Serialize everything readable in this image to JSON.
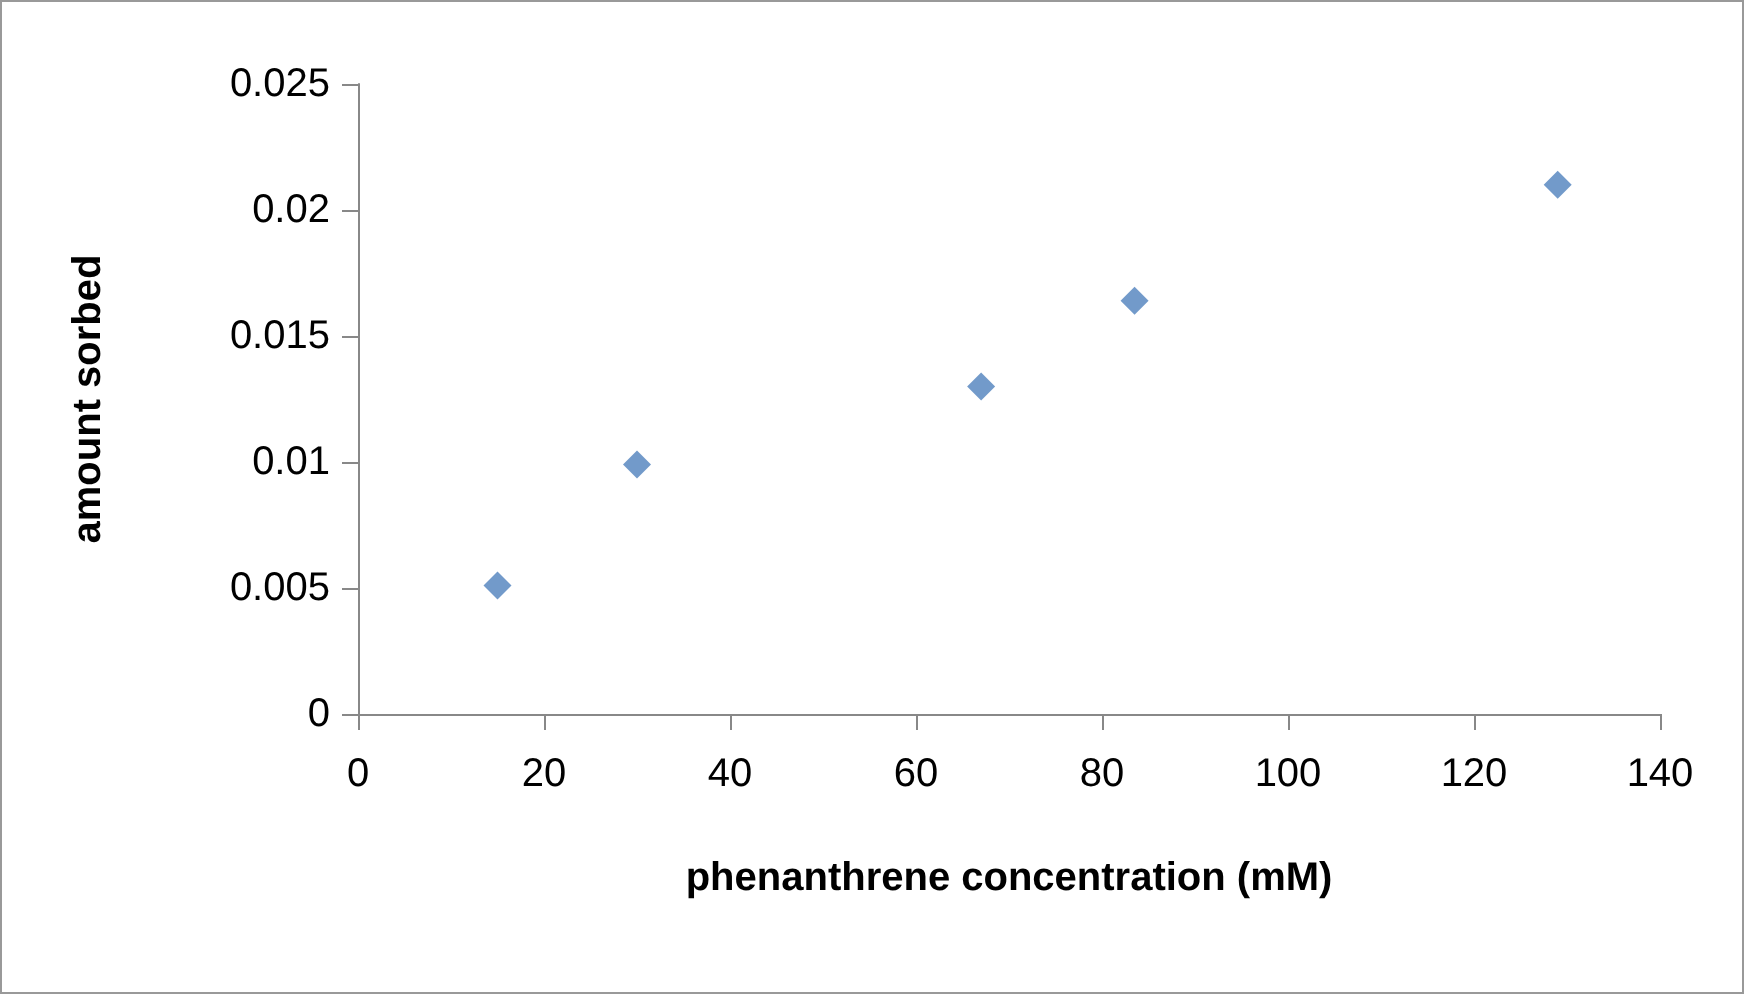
{
  "chart_data": {
    "type": "scatter",
    "xlabel": "phenanthrene concentration (mM)",
    "ylabel": "amount sorbed",
    "x": [
      15,
      30,
      67,
      83.5,
      129
    ],
    "series": [
      {
        "color": "#4f81bd",
        "values": [
          0.0051,
          0.0099,
          0.013,
          0.0164,
          0.021
        ]
      }
    ],
    "marker": "diamond",
    "xlim": [
      0,
      140
    ],
    "xticks": [
      0,
      20,
      40,
      60,
      80,
      100,
      120,
      140
    ],
    "ylim": [
      0,
      0.025
    ],
    "yticks": [
      0,
      0.005,
      0.01,
      0.015,
      0.02,
      0.025
    ],
    "grid": false,
    "legend": false
  }
}
